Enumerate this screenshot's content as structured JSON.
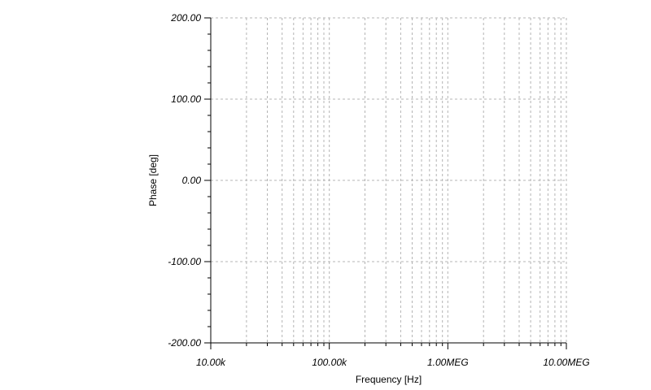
{
  "chart_data": {
    "type": "line",
    "title": "",
    "xlabel": "Frequency [Hz]",
    "ylabel": "Phase [deg]",
    "x_scale": "log",
    "xlim": [
      10000,
      10000000
    ],
    "ylim": [
      -200,
      200
    ],
    "y_ticks": [
      {
        "value": 200,
        "label": "200.00"
      },
      {
        "value": 100,
        "label": "100.00"
      },
      {
        "value": 0,
        "label": "0.00"
      },
      {
        "value": -100,
        "label": "-100.00"
      },
      {
        "value": -200,
        "label": "-200.00"
      }
    ],
    "x_ticks": [
      {
        "value": 10000,
        "label": "10.00k"
      },
      {
        "value": 100000,
        "label": "100.00k"
      },
      {
        "value": 1000000,
        "label": "1.00MEG"
      },
      {
        "value": 10000000,
        "label": "10.00MEG"
      }
    ],
    "grid": true,
    "series": []
  }
}
